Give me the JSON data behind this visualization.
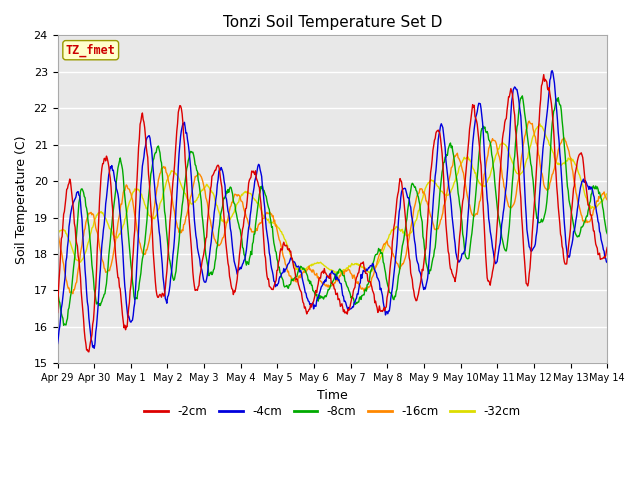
{
  "title": "Tonzi Soil Temperature Set D",
  "xlabel": "Time",
  "ylabel": "Soil Temperature (C)",
  "ylim": [
    15.0,
    24.0
  ],
  "yticks": [
    15.0,
    16.0,
    17.0,
    18.0,
    19.0,
    20.0,
    21.0,
    22.0,
    23.0,
    24.0
  ],
  "xtick_labels": [
    "Apr 29",
    "Apr 30",
    "May 1",
    "May 2",
    "May 3",
    "May 4",
    "May 5",
    "May 6",
    "May 7",
    "May 8",
    "May 9",
    "May 10",
    "May 11",
    "May 12",
    "May 13",
    "May 14"
  ],
  "annotation_text": "TZ_fmet",
  "annotation_color": "#cc0000",
  "annotation_bg": "#ffffcc",
  "annotation_border": "#999900",
  "series_colors": [
    "#dd0000",
    "#0000dd",
    "#00aa00",
    "#ff8800",
    "#dddd00"
  ],
  "series_labels": [
    "-2cm",
    "-4cm",
    "-8cm",
    "-16cm",
    "-32cm"
  ],
  "background_color": "#e8e8e8",
  "grid_color": "#ffffff",
  "fig_width": 6.4,
  "fig_height": 4.8,
  "dpi": 100
}
